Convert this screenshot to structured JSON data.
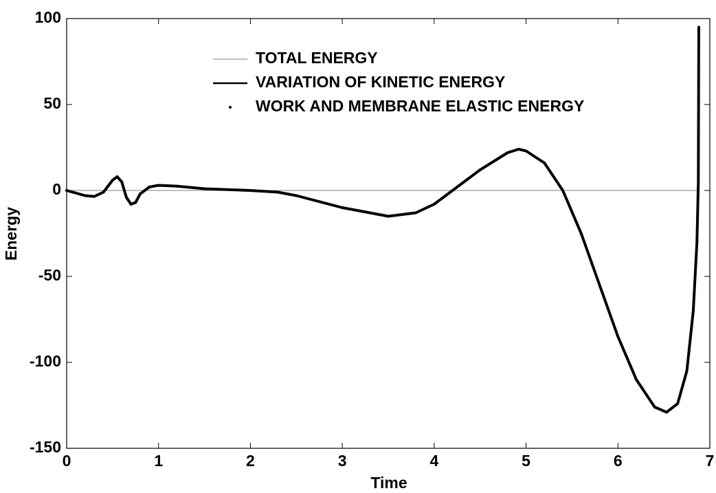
{
  "chart_data": {
    "type": "line",
    "xlabel": "Time",
    "ylabel": "Energy",
    "xlim": [
      0,
      7
    ],
    "xticks": [
      0,
      1,
      2,
      3,
      4,
      5,
      6,
      7
    ],
    "ylim": [
      -150,
      100
    ],
    "yticks": [
      -150,
      -100,
      -50,
      0,
      50,
      100
    ],
    "series": [
      {
        "name": "TOTAL ENERGY",
        "color": "#999999",
        "style": "line",
        "width": 1.2,
        "x": [
          0,
          6.88
        ],
        "values": [
          0,
          0
        ]
      },
      {
        "name": "VARIATION OF KINETIC ENERGY",
        "color": "#000000",
        "style": "line",
        "width": 4,
        "x": [
          0,
          0.1,
          0.2,
          0.3,
          0.4,
          0.5,
          0.55,
          0.6,
          0.65,
          0.7,
          0.75,
          0.8,
          0.9,
          1.0,
          1.2,
          1.5,
          2.0,
          2.3,
          2.5,
          3.0,
          3.5,
          3.8,
          4.0,
          4.2,
          4.5,
          4.8,
          4.92,
          5.0,
          5.2,
          5.4,
          5.6,
          5.8,
          6.0,
          6.2,
          6.4,
          6.53,
          6.65,
          6.75,
          6.82,
          6.86,
          6.875,
          6.88
        ],
        "values": [
          0,
          -1.5,
          -3,
          -3.5,
          -1,
          6,
          8,
          5,
          -4,
          -8,
          -7,
          -2,
          2,
          3,
          2.5,
          1,
          0,
          -1,
          -3,
          -10,
          -15,
          -13,
          -8,
          0,
          12,
          22,
          24,
          23,
          16,
          0,
          -25,
          -55,
          -85,
          -110,
          -126,
          -129,
          -124,
          -105,
          -70,
          -30,
          5,
          95
        ]
      },
      {
        "name": "WORK AND MEMBRANE ELASTIC ENERGY",
        "color": "#000000",
        "style": "dots",
        "width": 2,
        "x": [
          0,
          0.2,
          0.4,
          0.55,
          0.7,
          0.9,
          1.2,
          1.5,
          2.0,
          2.5,
          3.0,
          3.5,
          4.0,
          4.5,
          4.92,
          5.2,
          5.6,
          6.0,
          6.4,
          6.53,
          6.75,
          6.86,
          6.88
        ],
        "values": [
          0,
          -3,
          -1,
          8,
          -8,
          2,
          2.5,
          1,
          0,
          -3,
          -10,
          -15,
          -8,
          12,
          24,
          16,
          -25,
          -85,
          -126,
          -129,
          -105,
          -30,
          95
        ]
      }
    ]
  }
}
